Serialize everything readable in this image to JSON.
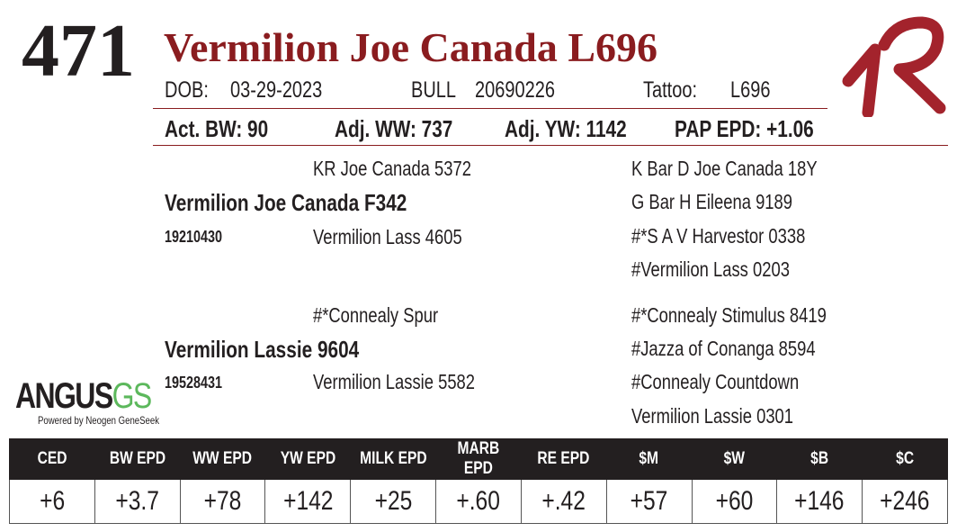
{
  "lot": "471",
  "name": "Vermilion Joe Canada L696",
  "info": {
    "dob_label": "DOB:",
    "dob": "03-29-2023",
    "sex": "BULL",
    "registration": "20690226",
    "tattoo_label": "Tattoo:",
    "tattoo": "L696"
  },
  "stats": [
    "Act. BW: 90",
    "Adj. WW: 737",
    "Adj. YW: 1142",
    "PAP EPD: +1.06"
  ],
  "pedigree": {
    "sire": {
      "name": "Vermilion Joe Canada F342",
      "registration": "19210430",
      "sire": "KR Joe Canada 5372",
      "dam": "Vermilion Lass 4605",
      "grandparents": [
        "K Bar D Joe Canada 18Y",
        "G Bar H Eileena 9189",
        "#*S A V Harvestor 0338",
        "#Vermilion Lass 0203"
      ]
    },
    "dam": {
      "name": "Vermilion Lassie 9604",
      "registration": "19528431",
      "sire": "#*Connealy Spur",
      "dam": "Vermilion Lassie 5582",
      "grandparents": [
        "#*Connealy Stimulus 8419",
        "#Jazza of Conanga 8594",
        "#Connealy Countdown",
        "Vermilion Lassie 0301"
      ]
    }
  },
  "logo": {
    "angus": "ANGUS",
    "gs": "GS",
    "tagline": "Powered by Neogen GeneSeek"
  },
  "epd_table": {
    "headers": [
      "CED",
      "BW EPD",
      "WW EPD",
      "YW EPD",
      "MILK EPD",
      "MARB EPD",
      "RE EPD",
      "$M",
      "$W",
      "$B",
      "$C"
    ],
    "values": [
      "+6",
      "+3.7",
      "+78",
      "+142",
      "+25",
      "+.60",
      "+.42",
      "+57",
      "+60",
      "+146",
      "+246"
    ]
  }
}
